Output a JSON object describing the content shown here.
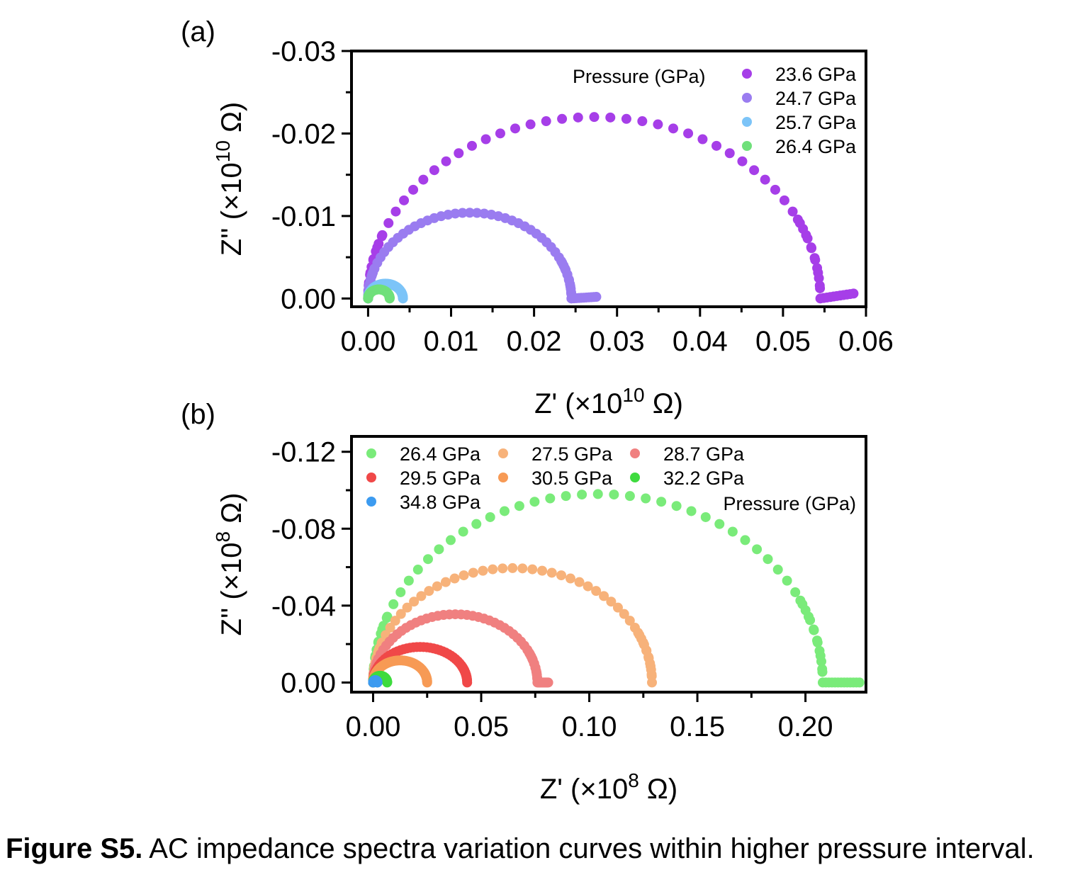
{
  "caption": {
    "label": "Figure S5.",
    "text": " AC impedance spectra variation curves within higher pressure interval."
  },
  "chart_data": [
    {
      "type": "scatter",
      "panel_label": "(a)",
      "xlabel": "Z' (×10",
      "xlabel_exp": "10",
      "xlabel_end": " Ω)",
      "ylabel": "Z'' (×10",
      "ylabel_exp": "10",
      "ylabel_end": " Ω)",
      "xlim": [
        -0.002,
        0.06
      ],
      "ylim": [
        0.001,
        -0.03
      ],
      "xticks": [
        "0.00",
        "0.01",
        "0.02",
        "0.03",
        "0.04",
        "0.05",
        "0.06"
      ],
      "yticks": [
        "-0.03",
        "-0.02",
        "-0.01",
        "0.00"
      ],
      "grid": false,
      "legend_title": "Pressure (GPa)",
      "legend_position": "top-right",
      "series": [
        {
          "name": "23.6 GPa",
          "color": "#A63EE8",
          "x_start": 0.0,
          "R": 0.0545,
          "peak": 0.022,
          "tail_end": 0.0585,
          "tail_y": -0.0006
        },
        {
          "name": "24.7 GPa",
          "color": "#9A7CF0",
          "x_start": 0.0,
          "R": 0.0245,
          "peak": 0.0104,
          "tail_end": 0.0275,
          "tail_y": -0.0002
        },
        {
          "name": "25.7 GPa",
          "color": "#7CC4F8",
          "x_start": 0.0,
          "R": 0.0042,
          "peak": 0.0018,
          "tail_end": 0.0042,
          "tail_y": 0.0
        },
        {
          "name": "26.4 GPa",
          "color": "#6FE07A",
          "x_start": 0.0,
          "R": 0.0026,
          "peak": 0.0011,
          "tail_end": 0.0026,
          "tail_y": 0.0
        }
      ]
    },
    {
      "type": "scatter",
      "panel_label": "(b)",
      "xlabel": "Z' (×10",
      "xlabel_exp": "8",
      "xlabel_end": " Ω)",
      "ylabel": "Z'' (×10",
      "ylabel_exp": "8",
      "ylabel_end": " Ω)",
      "xlim": [
        -0.01,
        0.228
      ],
      "ylim": [
        0.005,
        -0.128
      ],
      "xticks": [
        "0.00",
        "0.05",
        "0.10",
        "0.15",
        "0.20"
      ],
      "yticks": [
        "-0.12",
        "-0.08",
        "-0.04",
        "0.00"
      ],
      "grid": false,
      "legend_title": "Pressure (GPa)",
      "legend_position": "top-left",
      "series": [
        {
          "name": "26.4 GPa",
          "color": "#7AEB7A",
          "x_start": 0.0,
          "R": 0.208,
          "peak": 0.098,
          "tail_end": 0.225,
          "tail_y": 0.0
        },
        {
          "name": "27.5 GPa",
          "color": "#F7B27A",
          "x_start": 0.0,
          "R": 0.129,
          "peak": 0.0595,
          "tail_end": 0.129,
          "tail_y": 0.0
        },
        {
          "name": "28.7 GPa",
          "color": "#F08080",
          "x_start": 0.0,
          "R": 0.076,
          "peak": 0.0355,
          "tail_end": 0.081,
          "tail_y": 0.0
        },
        {
          "name": "29.5 GPa",
          "color": "#F04848",
          "x_start": 0.0,
          "R": 0.0435,
          "peak": 0.0185,
          "tail_end": 0.0435,
          "tail_y": 0.0
        },
        {
          "name": "30.5 GPa",
          "color": "#F79A55",
          "x_start": 0.0,
          "R": 0.025,
          "peak": 0.0115,
          "tail_end": 0.025,
          "tail_y": 0.0
        },
        {
          "name": "32.2 GPa",
          "color": "#3EDB3E",
          "x_start": 0.0,
          "R": 0.0065,
          "peak": 0.0035,
          "tail_end": 0.0065,
          "tail_y": 0.0
        },
        {
          "name": "34.8 GPa",
          "color": "#3C9BF0",
          "x_start": 0.0,
          "R": 0.002,
          "peak": 0.0012,
          "tail_end": 0.002,
          "tail_y": 0.0
        }
      ]
    }
  ]
}
